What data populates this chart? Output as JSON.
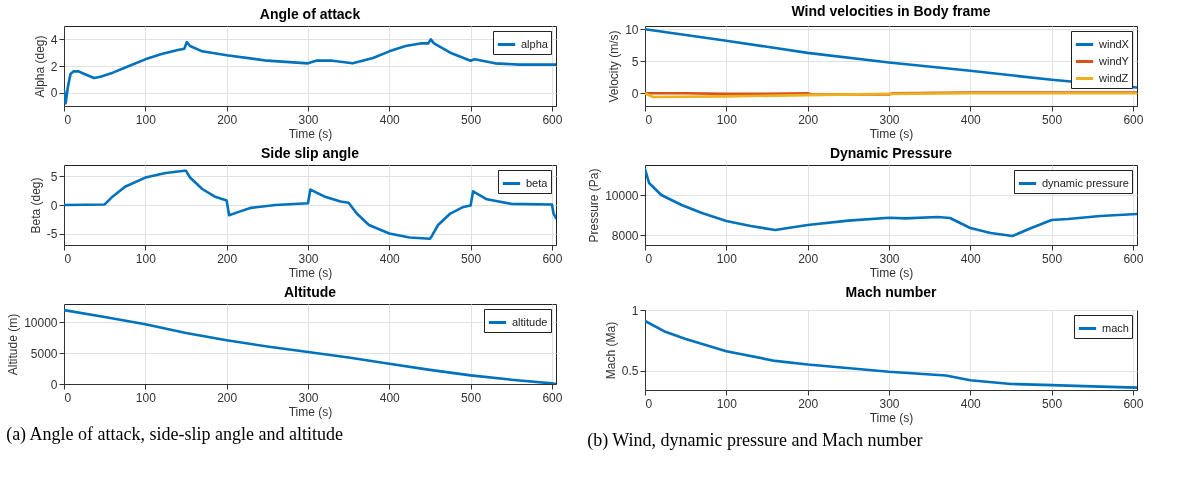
{
  "chart_data": [
    {
      "type": "line",
      "title": "Angle of attack",
      "xlabel": "Time (s)",
      "ylabel": "Alpha (deg)",
      "xlim": [
        0,
        605
      ],
      "xticks": [
        0,
        100,
        200,
        300,
        400,
        500,
        600
      ],
      "ylim": [
        -1,
        5
      ],
      "yticks": [
        0,
        2,
        4
      ],
      "grid": true,
      "legend": "top right",
      "line_style": "solid",
      "x": [
        0,
        2,
        5,
        8,
        12,
        18,
        25,
        37,
        45,
        60,
        80,
        100,
        120,
        140,
        148,
        151,
        155,
        170,
        200,
        250,
        300,
        310,
        330,
        355,
        380,
        400,
        420,
        440,
        448,
        451,
        455,
        475,
        500,
        505,
        530,
        560,
        600,
        605
      ],
      "series": [
        {
          "name": "alpha",
          "color": "#0072bd",
          "values": [
            0.2,
            -0.8,
            0.5,
            1.4,
            1.6,
            1.6,
            1.4,
            1.1,
            1.2,
            1.5,
            2.0,
            2.5,
            2.9,
            3.2,
            3.3,
            3.8,
            3.5,
            3.1,
            2.8,
            2.4,
            2.2,
            2.4,
            2.4,
            2.2,
            2.6,
            3.1,
            3.5,
            3.7,
            3.7,
            4.0,
            3.7,
            3.0,
            2.4,
            2.5,
            2.2,
            2.1,
            2.1,
            2.1
          ]
        }
      ]
    },
    {
      "type": "line",
      "title": "Side slip angle",
      "xlabel": "Time (s)",
      "ylabel": "Beta (deg)",
      "xlim": [
        0,
        605
      ],
      "xticks": [
        0,
        100,
        200,
        300,
        400,
        500,
        600
      ],
      "ylim": [
        -7,
        7
      ],
      "yticks": [
        -5,
        0,
        5
      ],
      "grid": true,
      "legend": "top right",
      "line_style": "solid",
      "x": [
        0,
        50,
        60,
        75,
        100,
        125,
        148,
        150,
        155,
        170,
        185,
        200,
        203,
        215,
        230,
        260,
        300,
        303,
        320,
        340,
        350,
        360,
        375,
        400,
        425,
        450,
        452,
        460,
        475,
        490,
        500,
        503,
        520,
        550,
        600,
        602,
        605
      ],
      "series": [
        {
          "name": "beta",
          "color": "#0072bd",
          "values": [
            0,
            0.1,
            1.5,
            3.2,
            4.8,
            5.6,
            6.0,
            6.0,
            4.8,
            2.8,
            1.5,
            0.8,
            -1.8,
            -1.2,
            -0.5,
            0,
            0.3,
            2.7,
            1.5,
            0.6,
            0.4,
            -1.5,
            -3.5,
            -5.0,
            -5.7,
            -5.9,
            -5.5,
            -3.5,
            -1.5,
            -0.4,
            -0.1,
            2.4,
            1.0,
            0.2,
            0.1,
            -1.5,
            -2.3
          ]
        }
      ]
    },
    {
      "type": "line",
      "title": "Altitude",
      "xlabel": "Time (s)",
      "ylabel": "Altitude (m)",
      "xlim": [
        0,
        605
      ],
      "xticks": [
        0,
        100,
        200,
        300,
        400,
        500,
        600
      ],
      "ylim": [
        0,
        13000
      ],
      "yticks": [
        0,
        5000,
        10000
      ],
      "grid": true,
      "legend": "top right",
      "line_style": "solid",
      "annotations": [
        "(a) Angle of attack, side-slip angle and altitude"
      ],
      "x": [
        0,
        50,
        100,
        150,
        200,
        250,
        300,
        350,
        400,
        450,
        500,
        550,
        600,
        605
      ],
      "series": [
        {
          "name": "altitude",
          "color": "#0072bd",
          "values": [
            12000,
            10900,
            9700,
            8300,
            7100,
            6100,
            5200,
            4300,
            3300,
            2300,
            1400,
            700,
            100,
            0
          ]
        }
      ]
    },
    {
      "type": "line",
      "title": "Wind velocities in Body frame",
      "xlabel": "Time (s)",
      "ylabel": "Velocity (m/s)",
      "xlim": [
        0,
        605
      ],
      "xticks": [
        0,
        100,
        200,
        300,
        400,
        500,
        600
      ],
      "ylim": [
        -2,
        10.5
      ],
      "yticks": [
        0,
        5,
        10
      ],
      "grid": true,
      "legend": "top right",
      "line_style": "solid",
      "series": [
        {
          "name": "windX",
          "color": "#0072bd",
          "x": [
            0,
            100,
            200,
            300,
            400,
            500,
            605
          ],
          "values": [
            10,
            8.2,
            6.3,
            4.8,
            3.5,
            2.1,
            0.9
          ]
        },
        {
          "name": "windY",
          "color": "#d95319",
          "x": [
            0,
            50,
            100,
            150,
            200,
            205,
            300,
            305,
            400,
            500,
            605
          ],
          "values": [
            0,
            0,
            -0.1,
            -0.1,
            0,
            -0.2,
            -0.2,
            0,
            0.1,
            0.1,
            0.1
          ]
        },
        {
          "name": "windZ",
          "color": "#edb120",
          "x": [
            0,
            10,
            100,
            200,
            300,
            400,
            500,
            605
          ],
          "values": [
            0,
            -0.6,
            -0.5,
            -0.3,
            -0.1,
            0,
            0,
            0
          ]
        }
      ]
    },
    {
      "type": "line",
      "title": "Dynamic Pressure",
      "xlabel": "Time (s)",
      "ylabel": "Pressure (Pa)",
      "xlim": [
        0,
        605
      ],
      "xticks": [
        0,
        100,
        200,
        300,
        400,
        500,
        600
      ],
      "ylim": [
        7500,
        11500
      ],
      "yticks": [
        8000,
        10000
      ],
      "grid": true,
      "legend": "top right",
      "line_style": "solid",
      "x": [
        0,
        5,
        20,
        45,
        70,
        100,
        130,
        160,
        200,
        250,
        300,
        320,
        360,
        375,
        400,
        425,
        452,
        475,
        500,
        520,
        560,
        605
      ],
      "series": [
        {
          "name": "dynamic pressure",
          "color": "#0072bd",
          "values": [
            11300,
            10600,
            10000,
            9500,
            9100,
            8700,
            8450,
            8250,
            8500,
            8720,
            8860,
            8830,
            8900,
            8850,
            8350,
            8100,
            7950,
            8350,
            8750,
            8800,
            8950,
            9050
          ]
        }
      ]
    },
    {
      "type": "line",
      "title": "Mach number",
      "xlabel": "Time (s)",
      "ylabel": "Mach (Ma)",
      "xlim": [
        0,
        605
      ],
      "xticks": [
        0,
        100,
        200,
        300,
        400,
        500,
        600
      ],
      "ylim": [
        0.34,
        1
      ],
      "yticks": [
        0.5,
        1
      ],
      "grid": true,
      "legend": "top right",
      "line_style": "solid",
      "annotations": [
        "(b) Wind, dynamic pressure and Mach number"
      ],
      "x": [
        0,
        25,
        50,
        100,
        160,
        200,
        300,
        370,
        400,
        450,
        500,
        550,
        605
      ],
      "series": [
        {
          "name": "mach",
          "color": "#0072bd",
          "values": [
            0.91,
            0.82,
            0.76,
            0.66,
            0.58,
            0.55,
            0.49,
            0.46,
            0.42,
            0.39,
            0.38,
            0.37,
            0.36
          ]
        }
      ]
    }
  ]
}
